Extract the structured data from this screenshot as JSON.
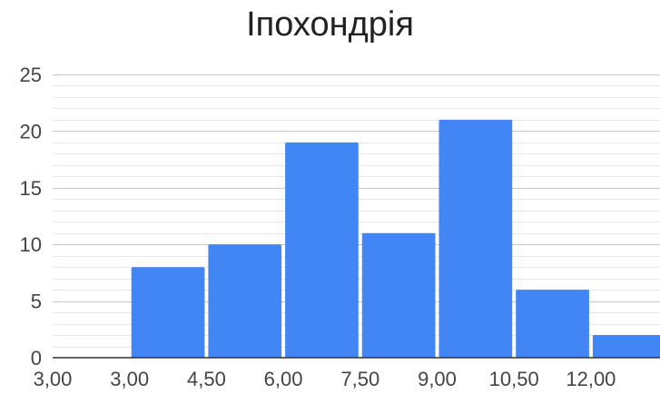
{
  "chart_data": {
    "type": "bar",
    "title": "Іпохондрія",
    "categories": [
      "3,00",
      "3,00",
      "4,50",
      "6,00",
      "7,50",
      "9,00",
      "10,50",
      "12,00"
    ],
    "values": [
      0,
      8,
      10,
      19,
      11,
      21,
      6,
      2
    ],
    "x_tick_labels": [
      "3,00",
      "3,00",
      "4,50",
      "6,00",
      "7,50",
      "9,00",
      "10,50",
      "12,00"
    ],
    "y_tick_labels": [
      "0",
      "5",
      "10",
      "15",
      "20",
      "25"
    ],
    "ylim": [
      0,
      25
    ],
    "major_step": 5,
    "minor_step": 1,
    "grid": true,
    "legend": "none",
    "xlabel": "",
    "ylabel": ""
  },
  "colors": {
    "bar": "#4285f4",
    "major_grid": "#c6c6c6",
    "minor_grid": "#e6e6e6",
    "axis": "#333333",
    "tick_text": "#444444",
    "title_text": "#222222"
  }
}
